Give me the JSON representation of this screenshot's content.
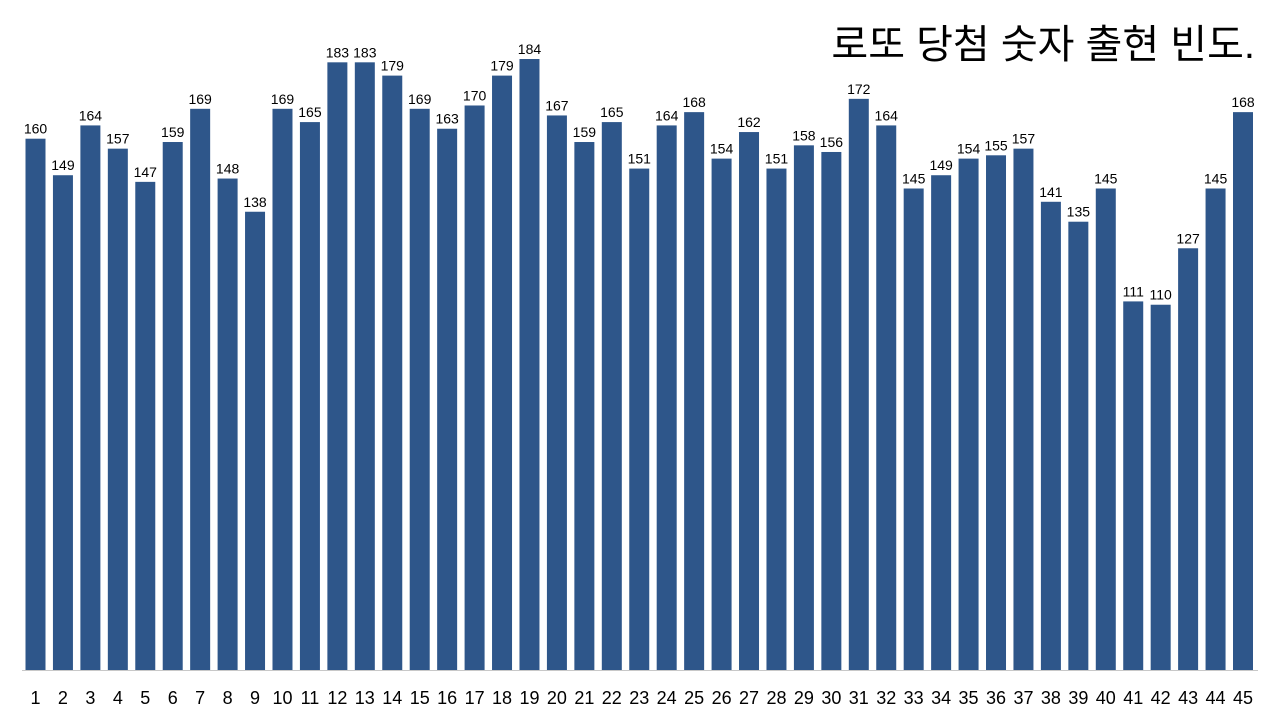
{
  "chart_data": {
    "type": "bar",
    "title": "로또 당첨 숫자 출현 빈도.",
    "categories": [
      "1",
      "2",
      "3",
      "4",
      "5",
      "6",
      "7",
      "8",
      "9",
      "10",
      "11",
      "12",
      "13",
      "14",
      "15",
      "16",
      "17",
      "18",
      "19",
      "20",
      "21",
      "22",
      "23",
      "24",
      "25",
      "26",
      "27",
      "28",
      "29",
      "30",
      "31",
      "32",
      "33",
      "34",
      "35",
      "36",
      "37",
      "38",
      "39",
      "40",
      "41",
      "42",
      "43",
      "44",
      "45"
    ],
    "values": [
      160,
      149,
      164,
      157,
      147,
      159,
      169,
      148,
      138,
      169,
      165,
      183,
      183,
      179,
      169,
      163,
      170,
      179,
      184,
      167,
      159,
      165,
      151,
      164,
      168,
      154,
      162,
      151,
      158,
      156,
      172,
      164,
      145,
      149,
      154,
      155,
      157,
      141,
      135,
      145,
      111,
      110,
      127,
      145,
      168
    ],
    "color": "#2e568a"
  }
}
